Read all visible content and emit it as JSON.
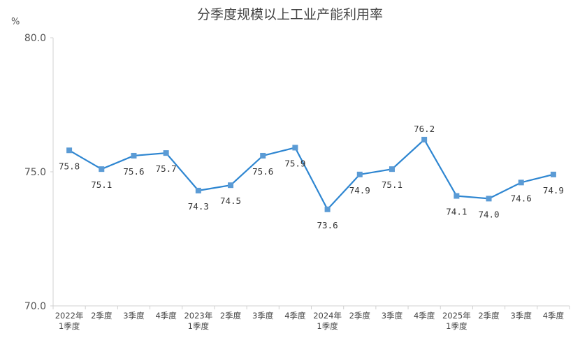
{
  "chart_data": {
    "type": "line",
    "title": "分季度规模以上工业产能利用率",
    "ylabel": "%",
    "ylim": [
      70.0,
      80.0
    ],
    "yticks": [
      "70.0",
      "75.0",
      "80.0"
    ],
    "grid": false,
    "categories": [
      [
        "2022年",
        "1季度"
      ],
      [
        "2季度"
      ],
      [
        "3季度"
      ],
      [
        "4季度"
      ],
      [
        "2023年",
        "1季度"
      ],
      [
        "2季度"
      ],
      [
        "3季度"
      ],
      [
        "4季度"
      ],
      [
        "2024年",
        "1季度"
      ],
      [
        "2季度"
      ],
      [
        "3季度"
      ],
      [
        "4季度"
      ],
      [
        "2025年",
        "1季度"
      ],
      [
        "2季度"
      ],
      [
        "3季度"
      ],
      [
        "4季度"
      ]
    ],
    "values": [
      75.8,
      75.1,
      75.6,
      75.7,
      74.3,
      74.5,
      75.6,
      75.9,
      73.6,
      74.9,
      75.1,
      76.2,
      74.1,
      74.0,
      74.6,
      74.9
    ],
    "data_labels": [
      "75.8",
      "75.1",
      "75.6",
      "75.7",
      "74.3",
      "74.5",
      "75.6",
      "75.9",
      "73.6",
      "74.9",
      "75.1",
      "76.2",
      "74.1",
      "74.0",
      "74.6",
      "74.9"
    ],
    "colors": {
      "line": "#2e86d1",
      "marker": "#5b9bd5",
      "axis": "#d0d0d0",
      "text": "#444444"
    }
  }
}
